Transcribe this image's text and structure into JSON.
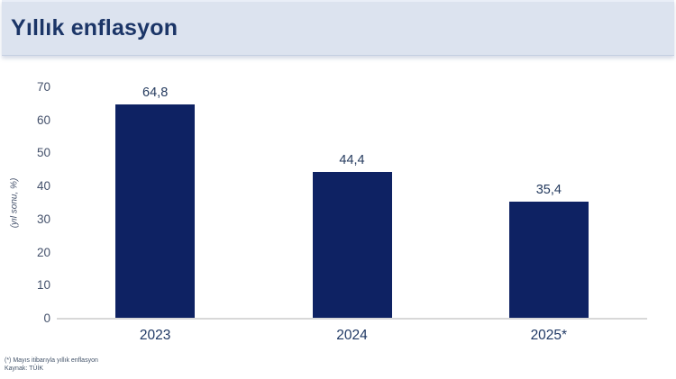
{
  "header": {
    "title": "Yıllık enflasyon"
  },
  "chart_data": {
    "type": "bar",
    "title": "Yıllık enflasyon",
    "categories": [
      "2023",
      "2024",
      "2025*"
    ],
    "values": [
      64.8,
      44.4,
      35.4
    ],
    "value_labels": [
      "64,8",
      "44,4",
      "35,4"
    ],
    "xlabel": "",
    "ylabel": "(yıl sonu, %)",
    "ylim": [
      0,
      70
    ],
    "yticks": [
      0,
      10,
      20,
      30,
      40,
      50,
      60,
      70
    ],
    "grid": false,
    "legend": "none",
    "bar_color": "#0e2263"
  },
  "footnotes": [
    "(*) Mayıs itibarıyla yıllık enflasyon",
    "Kaynak: TÜİK"
  ],
  "colors": {
    "header_background": "#dce3ef",
    "title_text": "#1b3567",
    "bar": "#0e2263",
    "axis_line": "#d8d8d8",
    "tick_text": "#44516b",
    "category_text": "#1f3864",
    "footnote_text": "#44546a"
  }
}
